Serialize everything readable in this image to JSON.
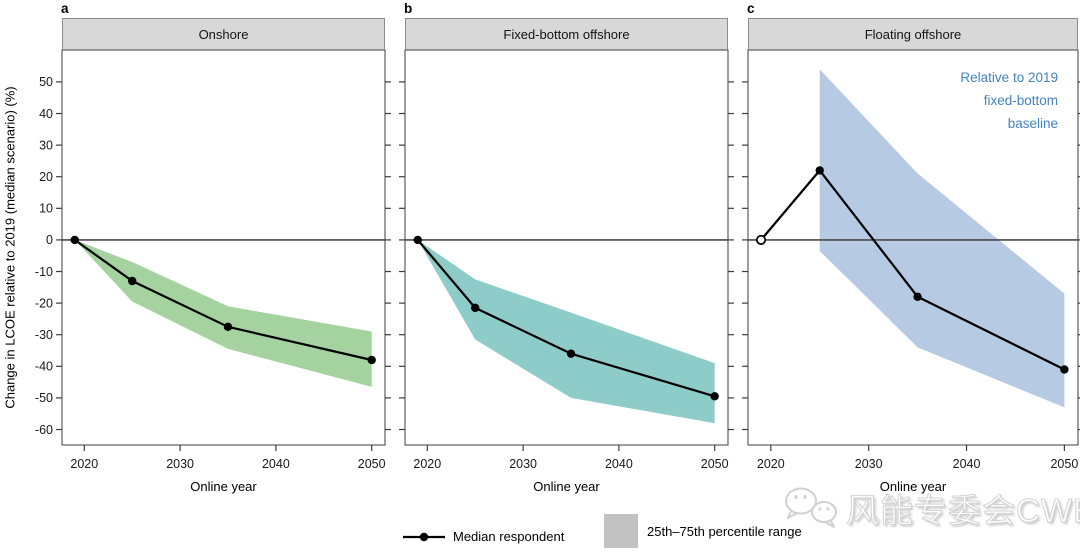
{
  "legend": {
    "median_label": "Median respondent",
    "range_label": "25th–75th percentile range",
    "range_swatch_color": "#c2c2c2"
  },
  "watermark": {
    "icon": "wechat-icon",
    "text": "风能专委会CWEA"
  },
  "colors": {
    "header_bg": "#d8d8d8",
    "zero_line": "#4a4a4a",
    "median_line": "#000000",
    "panel_border": "#3d3d3d",
    "tick_color": "#3d3d3d"
  },
  "chart_data": {
    "type": "line",
    "xlabel": "Online year",
    "ylabel": "Change in LCOE relative to 2019 (median scenario) (%)",
    "x": [
      2019,
      2025,
      2035,
      2050
    ],
    "x_ticks": [
      2020,
      2030,
      2040,
      2050
    ],
    "y_ticks": [
      -60,
      -50,
      -40,
      -30,
      -20,
      -10,
      0,
      10,
      20,
      30,
      40,
      50
    ],
    "xlim": [
      2017.67,
      2051.39
    ],
    "ylim": [
      -64.9,
      60.1
    ],
    "zero_line": 0,
    "legend_note": "shaded band = 25th–75th percentile range, line = median respondent",
    "panels": [
      {
        "letter": "a",
        "title": "Onshore",
        "median": [
          0,
          -13,
          -27.5,
          -38
        ],
        "band": {
          "x": [
            2019,
            2025,
            2035,
            2050
          ],
          "upper": [
            0,
            -7,
            -21,
            -29
          ],
          "lower": [
            0,
            -19.5,
            -34.5,
            -46.5
          ],
          "color": "#a5d3a0"
        },
        "open_first_marker": false
      },
      {
        "letter": "b",
        "title": "Fixed-bottom offshore",
        "median": [
          0,
          -21.5,
          -36,
          -49.5
        ],
        "band": {
          "x": [
            2019,
            2025,
            2035,
            2050
          ],
          "upper": [
            0,
            -12.5,
            -23,
            -39
          ],
          "lower": [
            0,
            -31.5,
            -50,
            -58
          ],
          "color": "#8eccc9"
        },
        "open_first_marker": false
      },
      {
        "letter": "c",
        "title": "Floating offshore",
        "median": [
          0,
          22,
          -18,
          -41
        ],
        "band": {
          "x": [
            2025,
            2035,
            2050
          ],
          "upper": [
            54,
            21,
            -17
          ],
          "lower": [
            -3.5,
            -34,
            -53
          ],
          "color": "#b6cbe3"
        },
        "open_first_marker": true,
        "annotation": {
          "lines": [
            "Relative to 2019",
            "fixed-bottom",
            "baseline"
          ],
          "color": "#4384c1"
        }
      }
    ]
  }
}
